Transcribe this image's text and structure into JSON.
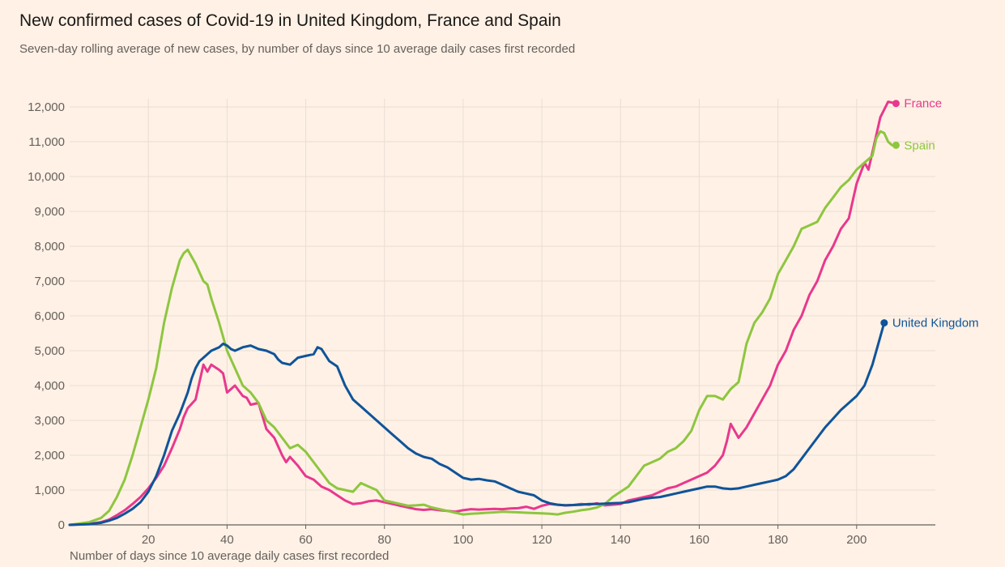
{
  "colors": {
    "background": "#fff1e5",
    "grid": "#e9ddd3",
    "axis": "#66605c",
    "tick_text": "#66605c"
  },
  "chart_data": {
    "type": "line",
    "title": "New confirmed cases of Covid-19 in United Kingdom, France and Spain",
    "subtitle": "Seven-day rolling average of new cases, by number of days since 10 average daily cases first recorded",
    "xlabel": "Number of days since 10 average daily cases first recorded",
    "ylabel": "",
    "xlim": [
      0,
      220
    ],
    "ylim": [
      0,
      12000
    ],
    "xticks": [
      20,
      40,
      60,
      80,
      100,
      120,
      140,
      160,
      180,
      200
    ],
    "yticks": [
      0,
      1000,
      2000,
      3000,
      4000,
      5000,
      6000,
      7000,
      8000,
      9000,
      10000,
      11000,
      12000
    ],
    "ytick_labels": [
      "0",
      "1,000",
      "2,000",
      "3,000",
      "4,000",
      "5,000",
      "6,000",
      "7,000",
      "8,000",
      "9,000",
      "10,000",
      "11,000",
      "12,000"
    ],
    "grid": true,
    "legend": "end-of-line labels",
    "series": [
      {
        "name": "France",
        "color": "#e8388e",
        "x": [
          0,
          5,
          8,
          10,
          12,
          14,
          16,
          18,
          20,
          22,
          24,
          26,
          28,
          29,
          30,
          32,
          33,
          34,
          35,
          36,
          38,
          39,
          40,
          42,
          43,
          44,
          45,
          46,
          48,
          50,
          52,
          54,
          55,
          56,
          58,
          60,
          62,
          64,
          66,
          68,
          70,
          72,
          74,
          76,
          78,
          80,
          82,
          84,
          86,
          88,
          90,
          92,
          94,
          96,
          98,
          100,
          102,
          104,
          106,
          108,
          110,
          112,
          114,
          116,
          118,
          120,
          122,
          124,
          126,
          128,
          130,
          132,
          134,
          136,
          138,
          140,
          142,
          144,
          146,
          148,
          150,
          152,
          154,
          156,
          158,
          160,
          162,
          164,
          166,
          167,
          168,
          170,
          172,
          174,
          176,
          178,
          180,
          182,
          184,
          186,
          188,
          190,
          192,
          194,
          196,
          198,
          200,
          202,
          203,
          204,
          206,
          208,
          210
        ],
        "values": [
          0,
          30,
          80,
          150,
          280,
          420,
          600,
          800,
          1050,
          1350,
          1700,
          2200,
          2750,
          3100,
          3350,
          3600,
          4100,
          4600,
          4400,
          4600,
          4450,
          4350,
          3800,
          4000,
          3850,
          3700,
          3650,
          3450,
          3500,
          2750,
          2500,
          2000,
          1800,
          1950,
          1700,
          1400,
          1300,
          1100,
          1000,
          850,
          700,
          600,
          620,
          680,
          700,
          650,
          600,
          550,
          500,
          450,
          430,
          450,
          420,
          400,
          380,
          420,
          450,
          440,
          450,
          460,
          450,
          470,
          480,
          520,
          460,
          550,
          600,
          580,
          560,
          570,
          600,
          580,
          620,
          560,
          580,
          600,
          700,
          750,
          800,
          850,
          950,
          1050,
          1100,
          1200,
          1300,
          1400,
          1500,
          1700,
          2000,
          2400,
          2900,
          2500,
          2800,
          3200,
          3600,
          4000,
          4600,
          5000,
          5600,
          6000,
          6600,
          7000,
          7600,
          8000,
          8500,
          8800,
          9800,
          10400,
          10200,
          10700,
          11700,
          12150,
          12100
        ]
      },
      {
        "name": "Spain",
        "color": "#8dc63f",
        "x": [
          0,
          5,
          8,
          10,
          12,
          14,
          16,
          18,
          20,
          22,
          24,
          26,
          27,
          28,
          29,
          30,
          31,
          32,
          34,
          35,
          36,
          38,
          40,
          42,
          44,
          46,
          48,
          50,
          52,
          54,
          56,
          58,
          60,
          62,
          64,
          66,
          68,
          70,
          72,
          74,
          76,
          78,
          80,
          82,
          84,
          86,
          88,
          90,
          92,
          94,
          96,
          98,
          100,
          102,
          104,
          106,
          108,
          110,
          112,
          114,
          116,
          118,
          120,
          122,
          124,
          126,
          128,
          130,
          132,
          134,
          136,
          138,
          140,
          142,
          144,
          146,
          148,
          150,
          152,
          154,
          156,
          158,
          160,
          162,
          164,
          166,
          168,
          170,
          172,
          174,
          176,
          178,
          180,
          182,
          184,
          186,
          188,
          190,
          192,
          194,
          196,
          198,
          200,
          202,
          204,
          205,
          206,
          207,
          208,
          209,
          210
        ],
        "values": [
          0,
          80,
          200,
          400,
          800,
          1300,
          2000,
          2800,
          3600,
          4500,
          5800,
          6800,
          7200,
          7600,
          7800,
          7900,
          7700,
          7500,
          7000,
          6900,
          6500,
          5800,
          5000,
          4500,
          4000,
          3800,
          3500,
          3000,
          2800,
          2500,
          2200,
          2300,
          2100,
          1800,
          1500,
          1200,
          1050,
          1000,
          950,
          1200,
          1100,
          1000,
          700,
          650,
          600,
          550,
          560,
          580,
          500,
          450,
          400,
          350,
          300,
          320,
          330,
          350,
          360,
          380,
          370,
          360,
          350,
          340,
          330,
          320,
          300,
          350,
          380,
          420,
          450,
          500,
          600,
          800,
          950,
          1100,
          1400,
          1700,
          1800,
          1900,
          2100,
          2200,
          2400,
          2700,
          3300,
          3700,
          3700,
          3600,
          3900,
          4100,
          5200,
          5800,
          6100,
          6500,
          7200,
          7600,
          8000,
          8500,
          8600,
          8700,
          9100,
          9400,
          9700,
          9900,
          10200,
          10400,
          10600,
          11100,
          11300,
          11250,
          11000,
          10900,
          10900
        ]
      },
      {
        "name": "United Kingdom",
        "color": "#0f5499",
        "x": [
          0,
          5,
          8,
          10,
          12,
          14,
          16,
          18,
          20,
          22,
          24,
          26,
          28,
          30,
          31,
          32,
          33,
          34,
          35,
          36,
          38,
          39,
          40,
          41,
          42,
          44,
          46,
          48,
          50,
          52,
          53,
          54,
          56,
          58,
          60,
          62,
          63,
          64,
          66,
          68,
          70,
          72,
          74,
          76,
          78,
          80,
          82,
          84,
          86,
          88,
          90,
          92,
          94,
          96,
          98,
          100,
          102,
          104,
          106,
          108,
          110,
          112,
          114,
          116,
          118,
          120,
          122,
          124,
          126,
          128,
          130,
          132,
          134,
          136,
          138,
          140,
          142,
          144,
          146,
          148,
          150,
          152,
          154,
          156,
          158,
          160,
          162,
          164,
          166,
          168,
          170,
          172,
          174,
          176,
          178,
          180,
          182,
          184,
          186,
          188,
          190,
          192,
          194,
          196,
          198,
          200,
          202,
          204,
          206,
          207
        ],
        "values": [
          0,
          20,
          60,
          120,
          200,
          320,
          460,
          650,
          950,
          1400,
          2000,
          2700,
          3200,
          3800,
          4200,
          4500,
          4700,
          4800,
          4900,
          5000,
          5100,
          5200,
          5150,
          5050,
          5000,
          5100,
          5150,
          5050,
          5000,
          4900,
          4750,
          4650,
          4600,
          4800,
          4850,
          4900,
          5100,
          5050,
          4700,
          4550,
          4000,
          3600,
          3400,
          3200,
          3000,
          2800,
          2600,
          2400,
          2200,
          2050,
          1950,
          1900,
          1750,
          1650,
          1500,
          1350,
          1300,
          1320,
          1280,
          1250,
          1150,
          1050,
          950,
          900,
          850,
          700,
          620,
          580,
          560,
          570,
          580,
          600,
          600,
          610,
          620,
          630,
          650,
          700,
          750,
          780,
          800,
          850,
          900,
          950,
          1000,
          1050,
          1100,
          1100,
          1050,
          1030,
          1050,
          1100,
          1150,
          1200,
          1250,
          1300,
          1400,
          1600,
          1900,
          2200,
          2500,
          2800,
          3050,
          3300,
          3500,
          3700,
          4000,
          4600,
          5400,
          5800
        ]
      }
    ]
  }
}
